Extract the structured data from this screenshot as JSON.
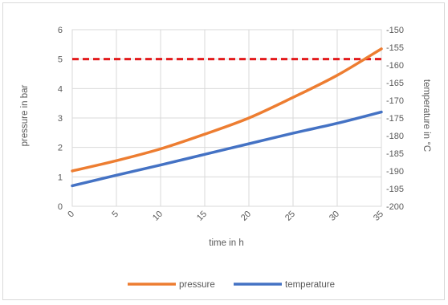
{
  "chart_data": {
    "type": "line",
    "title": "",
    "xlabel": "time in h",
    "ylabel": "pressure in bar",
    "y2label": "temperature in °C",
    "x": [
      0,
      5,
      10,
      15,
      20,
      25,
      30,
      35
    ],
    "xlim": [
      0,
      35
    ],
    "ylim": [
      0,
      6
    ],
    "y2lim": [
      -200,
      -150
    ],
    "x_ticks": [
      "0",
      "5",
      "10",
      "15",
      "20",
      "25",
      "30",
      "35"
    ],
    "y_ticks": [
      "0",
      "1",
      "2",
      "3",
      "4",
      "5",
      "6"
    ],
    "y2_ticks": [
      "-200",
      "-195",
      "-190",
      "-185",
      "-180",
      "-175",
      "-170",
      "-165",
      "-160",
      "-155",
      "-150"
    ],
    "grid": true,
    "legend_position": "bottom",
    "series": [
      {
        "name": "pressure",
        "axis": "left",
        "color": "#ED7D31",
        "x": [
          0,
          5,
          10,
          15,
          20,
          25,
          30,
          35
        ],
        "values": [
          1.2,
          1.55,
          1.95,
          2.45,
          3.0,
          3.7,
          4.45,
          5.35
        ]
      },
      {
        "name": "temperature",
        "axis": "right",
        "color": "#4472C4",
        "x": [
          0,
          5,
          10,
          15,
          20,
          25,
          30,
          35
        ],
        "values": [
          -194.2,
          -191.2,
          -188.3,
          -185.3,
          -182.3,
          -179.3,
          -176.5,
          -173.3
        ]
      }
    ],
    "reference_line": {
      "axis": "left",
      "value": 5,
      "color": "#E31A1C",
      "style": "dashed"
    }
  }
}
